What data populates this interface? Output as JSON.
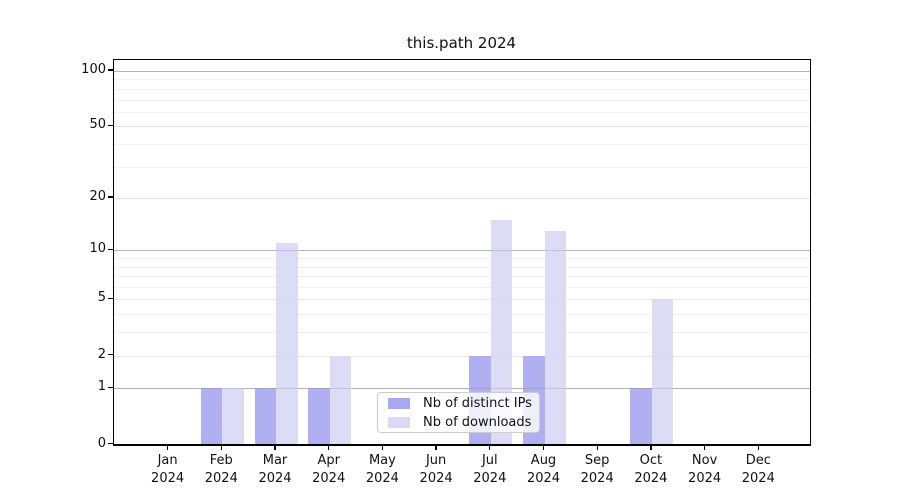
{
  "title": "this.path 2024",
  "chart_data": {
    "type": "bar",
    "title": "this.path 2024",
    "categories": [
      "Jan",
      "Feb",
      "Mar",
      "Apr",
      "May",
      "Jun",
      "Jul",
      "Aug",
      "Sep",
      "Oct",
      "Nov",
      "Dec"
    ],
    "x_year_label": "2024",
    "series": [
      {
        "name": "Nb of distinct IPs",
        "color": "#a8a8f0",
        "values": [
          0,
          1,
          1,
          1,
          0,
          0,
          2,
          2,
          0,
          1,
          0,
          0
        ]
      },
      {
        "name": "Nb of downloads",
        "color": "#d9d9f6",
        "values": [
          0,
          1,
          11,
          2,
          0,
          0,
          15,
          13,
          0,
          5,
          0,
          0
        ]
      }
    ],
    "xlabel": "",
    "ylabel": "",
    "yscale": "log1p",
    "ylim": [
      0,
      115
    ],
    "yticks": [
      0,
      1,
      2,
      5,
      10,
      20,
      50,
      100
    ],
    "y_decade_gridlines": [
      1,
      10,
      100
    ],
    "y_minor_gridlines": [
      3,
      4,
      6,
      7,
      8,
      9,
      30,
      40,
      60,
      70,
      80,
      90
    ],
    "grid": true,
    "legend_position": "lower center"
  },
  "legend": {
    "items": [
      {
        "label": "Nb of distinct IPs",
        "color": "#a8a8f0"
      },
      {
        "label": "Nb of downloads",
        "color": "#d9d9f6"
      }
    ]
  }
}
